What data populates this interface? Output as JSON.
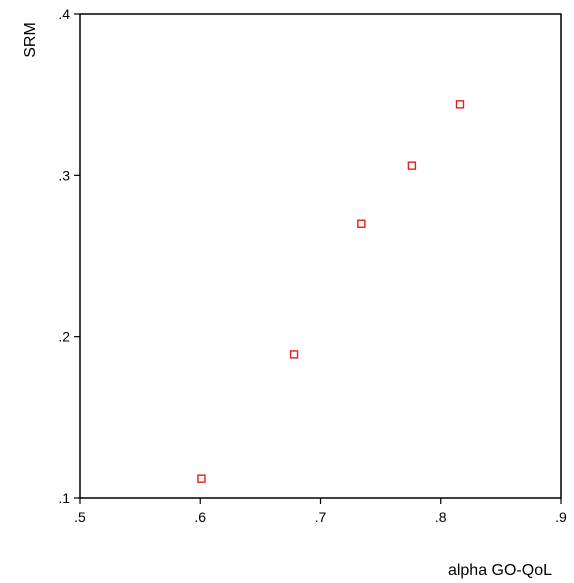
{
  "chart_data": {
    "type": "scatter",
    "title": "",
    "xlabel": "alpha GO-QoL",
    "ylabel": "SRM",
    "xlim": [
      0.5,
      0.9
    ],
    "ylim": [
      0.1,
      0.4
    ],
    "x_ticks": [
      0.5,
      0.6,
      0.7,
      0.8,
      0.9
    ],
    "x_tick_labels": [
      ".5",
      ".6",
      ".7",
      ".8",
      ".9"
    ],
    "y_ticks": [
      0.1,
      0.2,
      0.3,
      0.4
    ],
    "y_tick_labels": [
      ".1",
      ".2",
      ".3",
      ".4"
    ],
    "grid": false,
    "legend": "none",
    "marker": "hollow-square",
    "marker_color": "#e0201b",
    "points": [
      {
        "x": 0.601,
        "y": 0.112
      },
      {
        "x": 0.678,
        "y": 0.189
      },
      {
        "x": 0.734,
        "y": 0.27
      },
      {
        "x": 0.776,
        "y": 0.306
      },
      {
        "x": 0.816,
        "y": 0.344
      }
    ]
  }
}
